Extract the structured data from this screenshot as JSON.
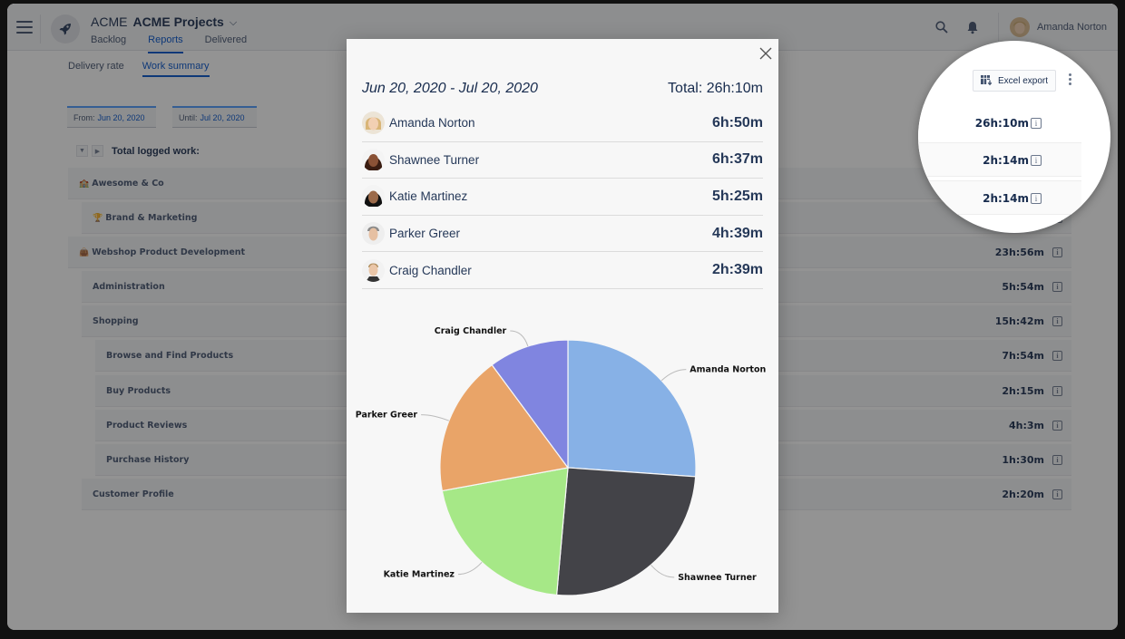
{
  "header": {
    "org": "ACME",
    "project": "ACME Projects",
    "nav": [
      {
        "label": "Backlog",
        "active": false
      },
      {
        "label": "Reports",
        "active": true
      },
      {
        "label": "Delivered",
        "active": false
      }
    ],
    "user_name": "Amanda Norton"
  },
  "subtabs": [
    {
      "label": "Delivery rate",
      "active": false
    },
    {
      "label": "Work summary",
      "active": true
    }
  ],
  "filters": {
    "from_label": "From:",
    "from_value": "Jun 20, 2020",
    "until_label": "Until:",
    "until_value": "Jul 20, 2020"
  },
  "report": {
    "total_label": "Total logged work:",
    "total_value": "26h:10m",
    "excel_export": "Excel export",
    "rows": [
      {
        "label": "Awesome & Co",
        "emoji": "🏫",
        "value": "2h:14m",
        "indent": 0
      },
      {
        "label": "Brand & Marketing",
        "emoji": "🏆",
        "value": "2h:14m",
        "indent": 1
      },
      {
        "label": "Webshop Product Development",
        "emoji": "👜",
        "value": "23h:56m",
        "indent": 0
      },
      {
        "label": "Administration",
        "emoji": "",
        "value": "5h:54m",
        "indent": 1
      },
      {
        "label": "Shopping",
        "emoji": "",
        "value": "15h:42m",
        "indent": 1
      },
      {
        "label": "Browse and Find Products",
        "emoji": "",
        "value": "7h:54m",
        "indent": 2
      },
      {
        "label": "Buy Products",
        "emoji": "",
        "value": "2h:15m",
        "indent": 2
      },
      {
        "label": "Product Reviews",
        "emoji": "",
        "value": "4h:3m",
        "indent": 2
      },
      {
        "label": "Purchase History",
        "emoji": "",
        "value": "1h:30m",
        "indent": 2
      },
      {
        "label": "Customer Profile",
        "emoji": "",
        "value": "2h:20m",
        "indent": 1
      }
    ]
  },
  "modal": {
    "range": "Jun 20, 2020 - Jul 20, 2020",
    "total": "Total: 26h:10m",
    "people": [
      {
        "name": "Amanda Norton",
        "time": "6h:50m"
      },
      {
        "name": "Shawnee Turner",
        "time": "6h:37m"
      },
      {
        "name": "Katie Martinez",
        "time": "5h:25m"
      },
      {
        "name": "Parker Greer",
        "time": "4h:39m"
      },
      {
        "name": "Craig Chandler",
        "time": "2h:39m"
      }
    ]
  },
  "chart_data": {
    "type": "pie",
    "title": "",
    "categories": [
      "Amanda Norton",
      "Shawnee Turner",
      "Katie Martinez",
      "Parker Greer",
      "Craig Chandler"
    ],
    "values": [
      410,
      397,
      325,
      279,
      159
    ],
    "unit": "minutes",
    "colors": [
      "#87b1e6",
      "#434348",
      "#a6e887",
      "#e9a468",
      "#8085e0"
    ],
    "labels_outside": true,
    "legend": "none"
  }
}
